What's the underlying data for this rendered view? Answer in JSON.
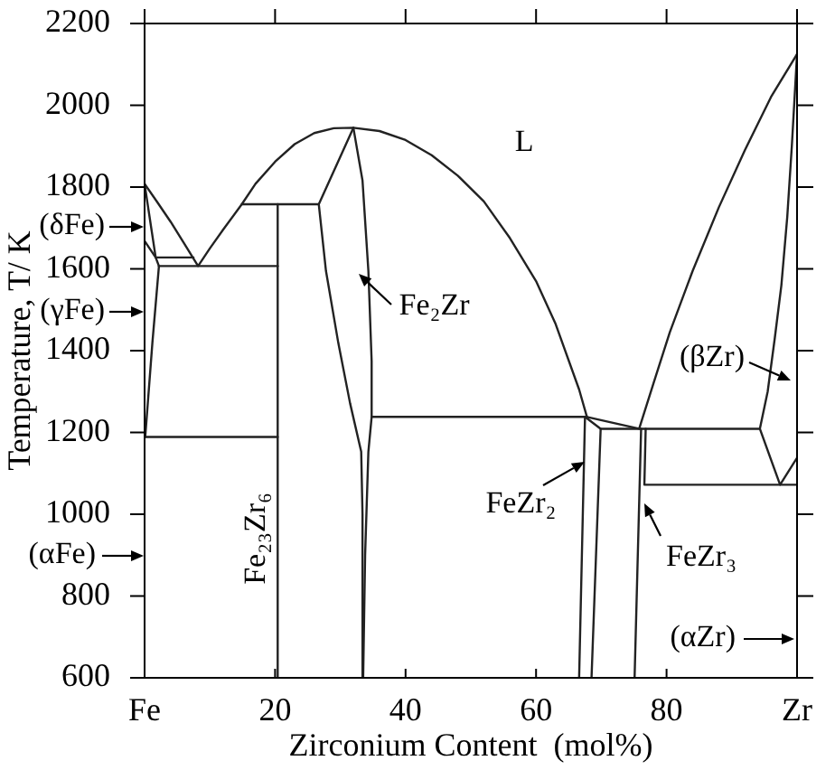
{
  "chart_data": {
    "type": "line",
    "xlabel": "Zirconium Content  (mol%)",
    "ylabel": "Temperature, T/ K",
    "xlim": [
      0,
      100
    ],
    "xticks": [
      {
        "value": 0,
        "label": "Fe"
      },
      20,
      40,
      60,
      80,
      {
        "value": 100,
        "label": "Zr"
      }
    ],
    "ylim": [
      600,
      2200
    ],
    "yticks": [
      600,
      800,
      1000,
      1200,
      1400,
      1600,
      1800,
      2000,
      2200
    ],
    "marker": "none",
    "legend": false,
    "annotations": [
      "L",
      "(δFe)",
      "(γFe)",
      {
        "text": "Fe₂Zr",
        "x": 32.9,
        "y": 1587
      },
      "(βZr)",
      {
        "text": "FeZr₂",
        "x": 67.5,
        "y": 1130
      },
      "Fe₂₃Zr₆",
      "(αFe)",
      {
        "text": "FeZr₃",
        "x": 76.6,
        "y": 1027
      },
      "(αZr)"
    ],
    "series": [
      {
        "color": "#222222",
        "x": [
          0,
          2,
          4,
          6,
          8.2,
          10,
          12,
          14.9,
          17,
          20,
          23,
          26,
          29,
          32,
          36,
          40,
          44,
          48,
          52,
          56,
          60,
          63,
          66.6,
          67.8,
          75.8,
          78,
          80.5,
          84,
          88,
          92,
          96,
          100
        ],
        "values": [
          1808,
          1762,
          1715,
          1664,
          1607,
          1650,
          1695,
          1758,
          1808,
          1862,
          1905,
          1932,
          1944,
          1945,
          1937,
          1915,
          1878,
          1828,
          1765,
          1675,
          1570,
          1465,
          1305,
          1238,
          1209,
          1320,
          1445,
          1595,
          1750,
          1890,
          2020,
          2125
        ]
      },
      {
        "color": "#222222",
        "x": [
          0,
          1.7,
          2.2,
          1.2,
          0.1
        ],
        "values": [
          1808,
          1628,
          1607,
          1420,
          1189
        ]
      },
      {
        "color": "#222222",
        "x": [
          0,
          1.7,
          7.5
        ],
        "values": [
          1668,
          1628,
          1628
        ]
      },
      {
        "color": "#222222",
        "x": [
          2.2,
          20.4
        ],
        "values": [
          1607,
          1607
        ]
      },
      {
        "color": "#222222",
        "x": [
          0.1,
          20.4
        ],
        "values": [
          1189,
          1189
        ]
      },
      {
        "color": "#222222",
        "x": [
          20.4,
          20.4
        ],
        "values": [
          1758,
          600
        ]
      },
      {
        "color": "#222222",
        "x": [
          14.9,
          26.7
        ],
        "values": [
          1758,
          1758
        ]
      },
      {
        "color": "#222222",
        "x": [
          32,
          26.7,
          27.8,
          29.7,
          31.5,
          33.2,
          33.4,
          33.4
        ],
        "values": [
          1945,
          1758,
          1595,
          1418,
          1271,
          1153,
          1000,
          600
        ]
      },
      {
        "color": "#222222",
        "x": [
          32,
          33.4,
          34.3,
          34.8,
          34.8,
          34.3,
          33.8,
          33.5
        ],
        "values": [
          1945,
          1816,
          1595,
          1374,
          1238,
          1153,
          900,
          600
        ]
      },
      {
        "color": "#222222",
        "x": [
          34.8,
          67.8
        ],
        "values": [
          1238,
          1238
        ]
      },
      {
        "color": "#222222",
        "x": [
          67.5,
          66.6
        ],
        "values": [
          1238,
          600
        ]
      },
      {
        "color": "#222222",
        "x": [
          67.5,
          69.9,
          68.5
        ],
        "values": [
          1238,
          1209,
          600
        ]
      },
      {
        "color": "#222222",
        "x": [
          69.9,
          94.3
        ],
        "values": [
          1209,
          1209
        ]
      },
      {
        "color": "#222222",
        "x": [
          76.1,
          75.1
        ],
        "values": [
          1209,
          600
        ]
      },
      {
        "color": "#222222",
        "x": [
          76.8,
          76.6,
          100
        ],
        "values": [
          1209,
          1072,
          1072
        ]
      },
      {
        "color": "#222222",
        "x": [
          100,
          99.2,
          98.5,
          97.6,
          96.6,
          95.5,
          94.3,
          97.4,
          100
        ],
        "values": [
          2125,
          1900,
          1727,
          1560,
          1432,
          1300,
          1209,
          1072,
          1138
        ]
      }
    ]
  }
}
